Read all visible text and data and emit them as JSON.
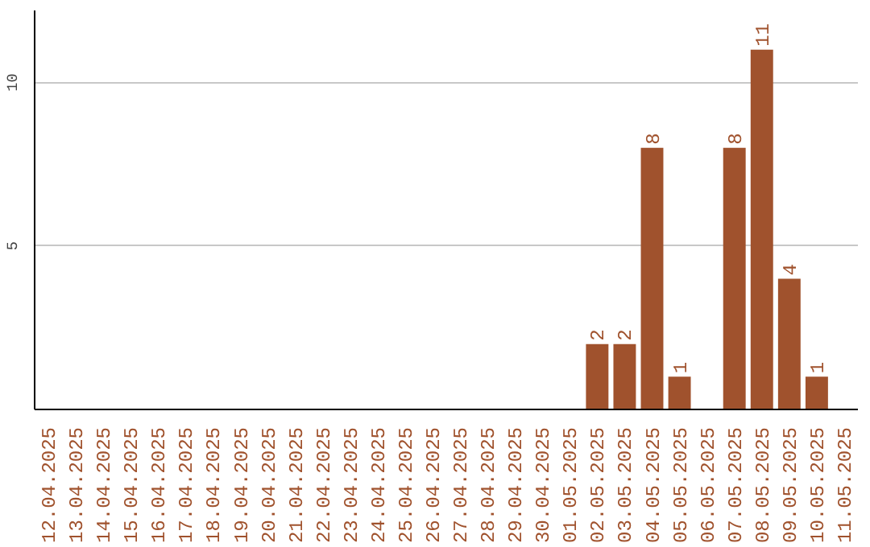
{
  "chart_data": {
    "type": "bar",
    "categories": [
      "12.04.2025",
      "13.04.2025",
      "14.04.2025",
      "15.04.2025",
      "16.04.2025",
      "17.04.2025",
      "18.04.2025",
      "19.04.2025",
      "20.04.2025",
      "21.04.2025",
      "22.04.2025",
      "23.04.2025",
      "24.04.2025",
      "25.04.2025",
      "26.04.2025",
      "27.04.2025",
      "28.04.2025",
      "29.04.2025",
      "30.04.2025",
      "01.05.2025",
      "02.05.2025",
      "03.05.2025",
      "04.05.2025",
      "05.05.2025",
      "06.05.2025",
      "07.05.2025",
      "08.05.2025",
      "09.05.2025",
      "10.05.2025",
      "11.05.2025"
    ],
    "values": [
      0,
      0,
      0,
      0,
      0,
      0,
      0,
      0,
      0,
      0,
      0,
      0,
      0,
      0,
      0,
      0,
      0,
      0,
      0,
      0,
      2,
      2,
      8,
      1,
      0,
      8,
      11,
      4,
      1,
      0
    ],
    "value_labels": [
      null,
      null,
      null,
      null,
      null,
      null,
      null,
      null,
      null,
      null,
      null,
      null,
      null,
      null,
      null,
      null,
      null,
      null,
      null,
      null,
      "2",
      "2",
      "8",
      "1",
      null,
      "8",
      "11",
      "4",
      "1",
      null
    ],
    "color": "#a0522d",
    "ylim": [
      0,
      12.2
    ],
    "yticks": [
      5,
      10
    ],
    "grid": "y"
  }
}
